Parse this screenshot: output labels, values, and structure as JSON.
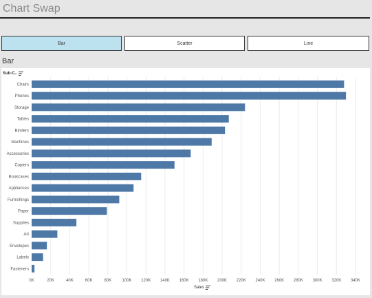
{
  "header": {
    "title": "Chart Swap"
  },
  "buttons": [
    {
      "label": "Bar",
      "active": true
    },
    {
      "label": "Scatter",
      "active": false
    },
    {
      "label": "Line",
      "active": false
    }
  ],
  "sheet": {
    "title": "Bar",
    "row_header": "Sub-C..",
    "x_field": "Sales"
  },
  "colors": {
    "bar": "#4e79a7",
    "grid": "#ebebeb",
    "active_button": "#bde2ef"
  },
  "chart_data": {
    "type": "bar",
    "orientation": "horizontal",
    "categories": [
      "Chairs",
      "Phones",
      "Storage",
      "Tables",
      "Binders",
      "Machines",
      "Accessories",
      "Copiers",
      "Bookcases",
      "Appliances",
      "Furnishings",
      "Paper",
      "Supplies",
      "Art",
      "Envelopes",
      "Labels",
      "Fasteners"
    ],
    "values": [
      328000,
      330000,
      224000,
      207000,
      203000,
      189000,
      167000,
      150000,
      115000,
      107000,
      92000,
      79000,
      47000,
      27000,
      16000,
      12000,
      3000
    ],
    "xlabel": "Sales",
    "ylabel": "Sub-C..",
    "xlim": [
      0,
      340000
    ],
    "xticks": [
      0,
      20000,
      40000,
      60000,
      80000,
      100000,
      120000,
      140000,
      160000,
      180000,
      200000,
      220000,
      240000,
      260000,
      280000,
      300000,
      320000,
      340000
    ],
    "xtick_labels": [
      "0K",
      "20K",
      "40K",
      "60K",
      "80K",
      "100K",
      "120K",
      "140K",
      "160K",
      "180K",
      "200K",
      "220K",
      "240K",
      "260K",
      "280K",
      "300K",
      "320K",
      "340K"
    ],
    "grid": true
  }
}
